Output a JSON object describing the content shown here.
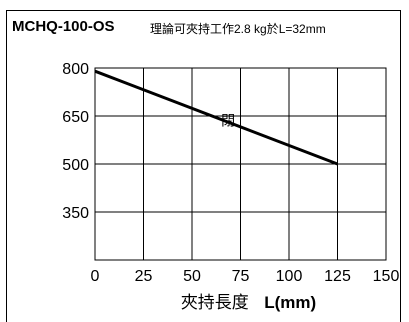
{
  "header": {
    "model": "MCHQ-100-OS",
    "note": "理論可夾持工作2.8 kg於L=32mm"
  },
  "chart_data": {
    "type": "line",
    "title": "MCHQ-100-OS",
    "subtitle": "理論可夾持工作2.8 kg於L=32mm",
    "xlabel_prefix": "夾持長度",
    "xlabel_unit": "L(mm)",
    "ylabel": "",
    "xlim": [
      0,
      150
    ],
    "ylim": [
      200,
      800
    ],
    "xticks": [
      0,
      25,
      50,
      75,
      100,
      125,
      150
    ],
    "yticks": [
      350,
      500,
      650,
      800
    ],
    "grid": true,
    "series": [
      {
        "x": [
          0,
          125
        ],
        "y": [
          790,
          500
        ]
      }
    ],
    "annotation": {
      "text": "閉",
      "x": 65,
      "y": 620
    }
  }
}
